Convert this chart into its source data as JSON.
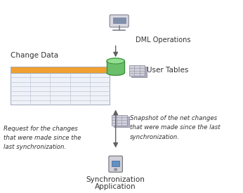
{
  "bg_color": "#ffffff",
  "elements": {
    "dml_label": "DML Operations",
    "change_data_label": "Change Data",
    "table_header_color": "#f0a030",
    "table_body_color": "#eef2f8",
    "table_grid_color": "#c0c8d8",
    "user_tables_label": "User Tables",
    "left_text_lines": [
      "Request for the changes",
      "that were made since the",
      "last synchronization."
    ],
    "right_text_lines": [
      "Snapshot of the net changes",
      "that were made since the last",
      "synchronization."
    ],
    "sync_app_label_line1": "Synchronization",
    "sync_app_label_line2": "Application"
  },
  "colors": {
    "text_dark": "#333333",
    "arrow_color": "#606060",
    "table_border": "#a0a8b8",
    "db_body": "#6abf6a",
    "db_top": "#90df90",
    "db_edge": "#3a8a3a",
    "grid_icon_back": "#b0b0c0",
    "grid_icon_front": "#d0d0e0",
    "grid_icon_edge": "#808090",
    "grid_line": "#909090",
    "monitor_body": "#d8d8e0",
    "monitor_edge": "#808090",
    "monitor_screen": "#8090a8",
    "phone_body": "#d0d0d8",
    "phone_edge": "#707078",
    "phone_screen": "#6090c0"
  }
}
